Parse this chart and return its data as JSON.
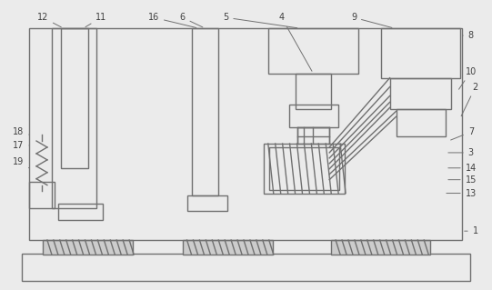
{
  "bg_color": "#ebebeb",
  "line_color": "#707070",
  "lw": 1.0,
  "fig_width": 5.41,
  "fig_height": 3.19,
  "dpi": 100
}
